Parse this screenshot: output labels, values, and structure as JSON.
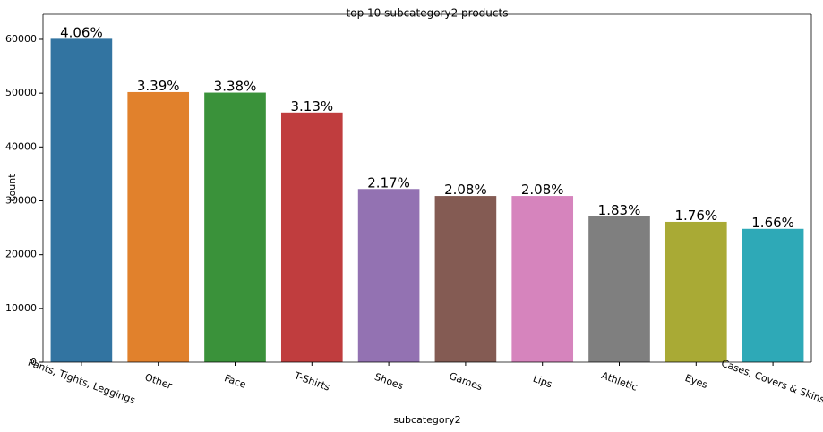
{
  "chart_data": {
    "type": "bar",
    "title": "top 10 subcategory2 products",
    "x_label": "subcategory2",
    "y_label": "count",
    "categories": [
      "Pants, Tights, Leggings",
      "Other",
      "Face",
      "T-Shirts",
      "Shoes",
      "Games",
      "Lips",
      "Athletic",
      "Eyes",
      "Cases, Covers & Skins"
    ],
    "values": [
      60100,
      50200,
      50100,
      46400,
      32200,
      30900,
      30900,
      27100,
      26100,
      24800
    ],
    "percent_labels": [
      {
        "value": 4.06,
        "label": "4.06%"
      },
      {
        "value": 3.39,
        "label": "3.39%"
      },
      {
        "value": 3.38,
        "label": "3.38%"
      },
      {
        "value": 3.13,
        "label": "3.13%"
      },
      {
        "value": 2.17,
        "label": "2.17%"
      },
      {
        "value": 2.08,
        "label": "2.08%"
      },
      {
        "value": 2.08,
        "label": "2.08%"
      },
      {
        "value": 1.83,
        "label": "1.83%"
      },
      {
        "value": 1.76,
        "label": "1.76%"
      },
      {
        "value": 1.66,
        "label": "1.66%"
      }
    ],
    "colors": [
      "#3274a1",
      "#e1812c",
      "#3a923a",
      "#c03d3e",
      "#9372b2",
      "#845b53",
      "#d684bd",
      "#7f7f7f",
      "#a9aa35",
      "#2ea9b7"
    ],
    "ylim": [
      0,
      64650
    ],
    "yticks": [
      0,
      10000,
      20000,
      30000,
      40000,
      50000,
      60000
    ],
    "grid": false
  }
}
